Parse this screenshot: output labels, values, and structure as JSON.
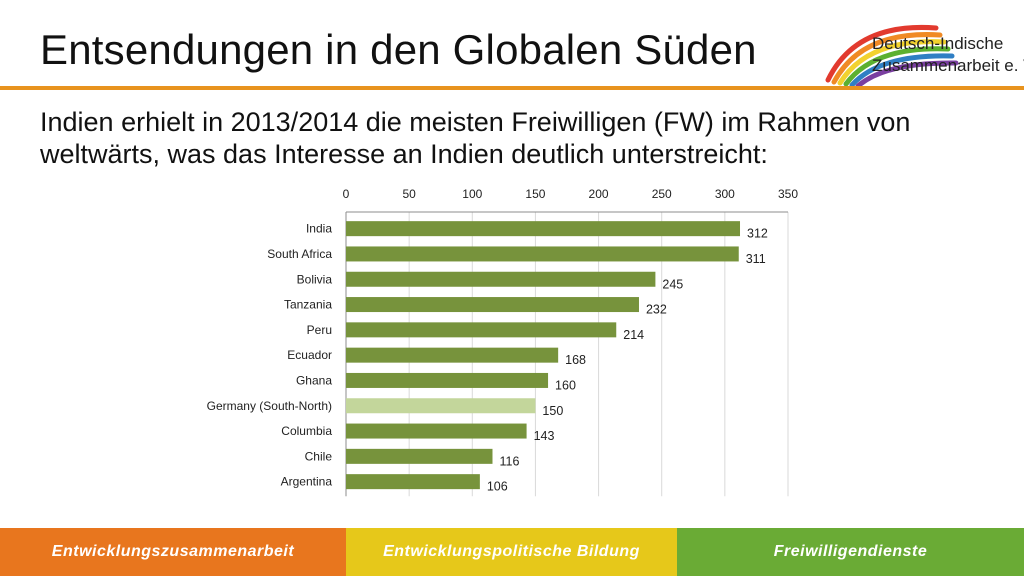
{
  "header": {
    "title": "Entsendungen in den Globalen Süden",
    "rule_color": "#e8931e"
  },
  "logo": {
    "line1": "Deutsch-Indische",
    "line2": "Zusammenarbeit e. V.",
    "icon": "rainbow-arc-icon"
  },
  "subtitle": "Indien erhielt in 2013/2014 die meisten Freiwilligen (FW) im Rahmen von weltwärts, was das Interesse an Indien deutlich unterstreicht:",
  "chart_data": {
    "type": "bar",
    "orientation": "horizontal",
    "categories": [
      "India",
      "South Africa",
      "Bolivia",
      "Tanzania",
      "Peru",
      "Ecuador",
      "Ghana",
      "Germany (South-North)",
      "Columbia",
      "Chile",
      "Argentina"
    ],
    "values": [
      312,
      311,
      245,
      232,
      214,
      168,
      160,
      150,
      143,
      116,
      106
    ],
    "xlim": [
      0,
      350
    ],
    "xticks": [
      0,
      50,
      100,
      150,
      200,
      250,
      300,
      350
    ],
    "axis_position": "top",
    "grid": true,
    "bar_color": "#77933c",
    "highlight_color": "#c3d69b",
    "highlight_category": "Germany (South-North)",
    "data_labels": true
  },
  "footer": {
    "items": [
      {
        "label": "Entwicklungszusammenarbeit",
        "color": "#e8761e"
      },
      {
        "label": "Entwicklungspolitische Bildung",
        "color": "#e6c81a"
      },
      {
        "label": "Freiwilligendienste",
        "color": "#6aab35"
      }
    ]
  }
}
